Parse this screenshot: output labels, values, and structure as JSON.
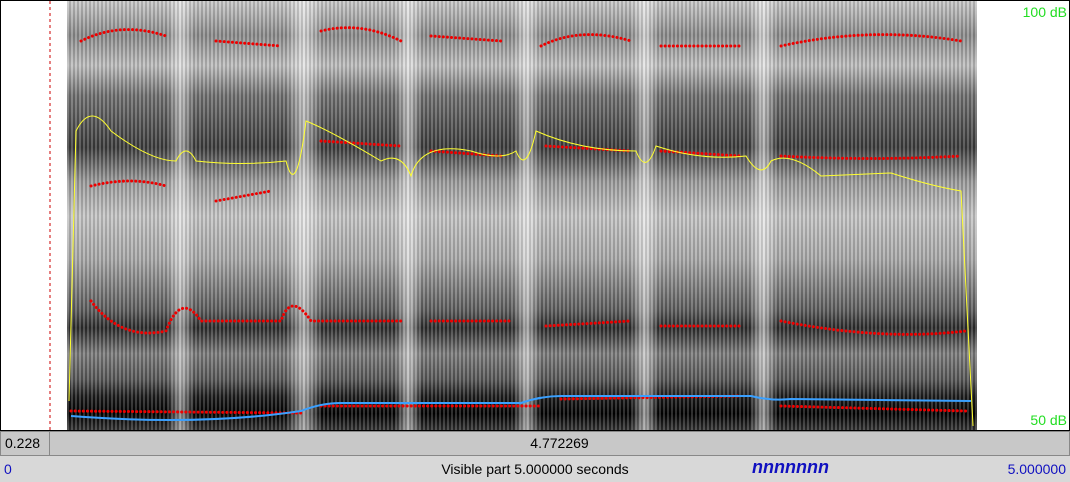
{
  "editor": {
    "intensity_max": "100 dB",
    "intensity_min": "50 dB",
    "selection": {
      "start": "0.228",
      "duration": "4.772269"
    },
    "window": {
      "start": "0",
      "visible": "Visible part 5.000000 seconds",
      "label": "nnnnnnn",
      "end": "5.000000"
    }
  }
}
